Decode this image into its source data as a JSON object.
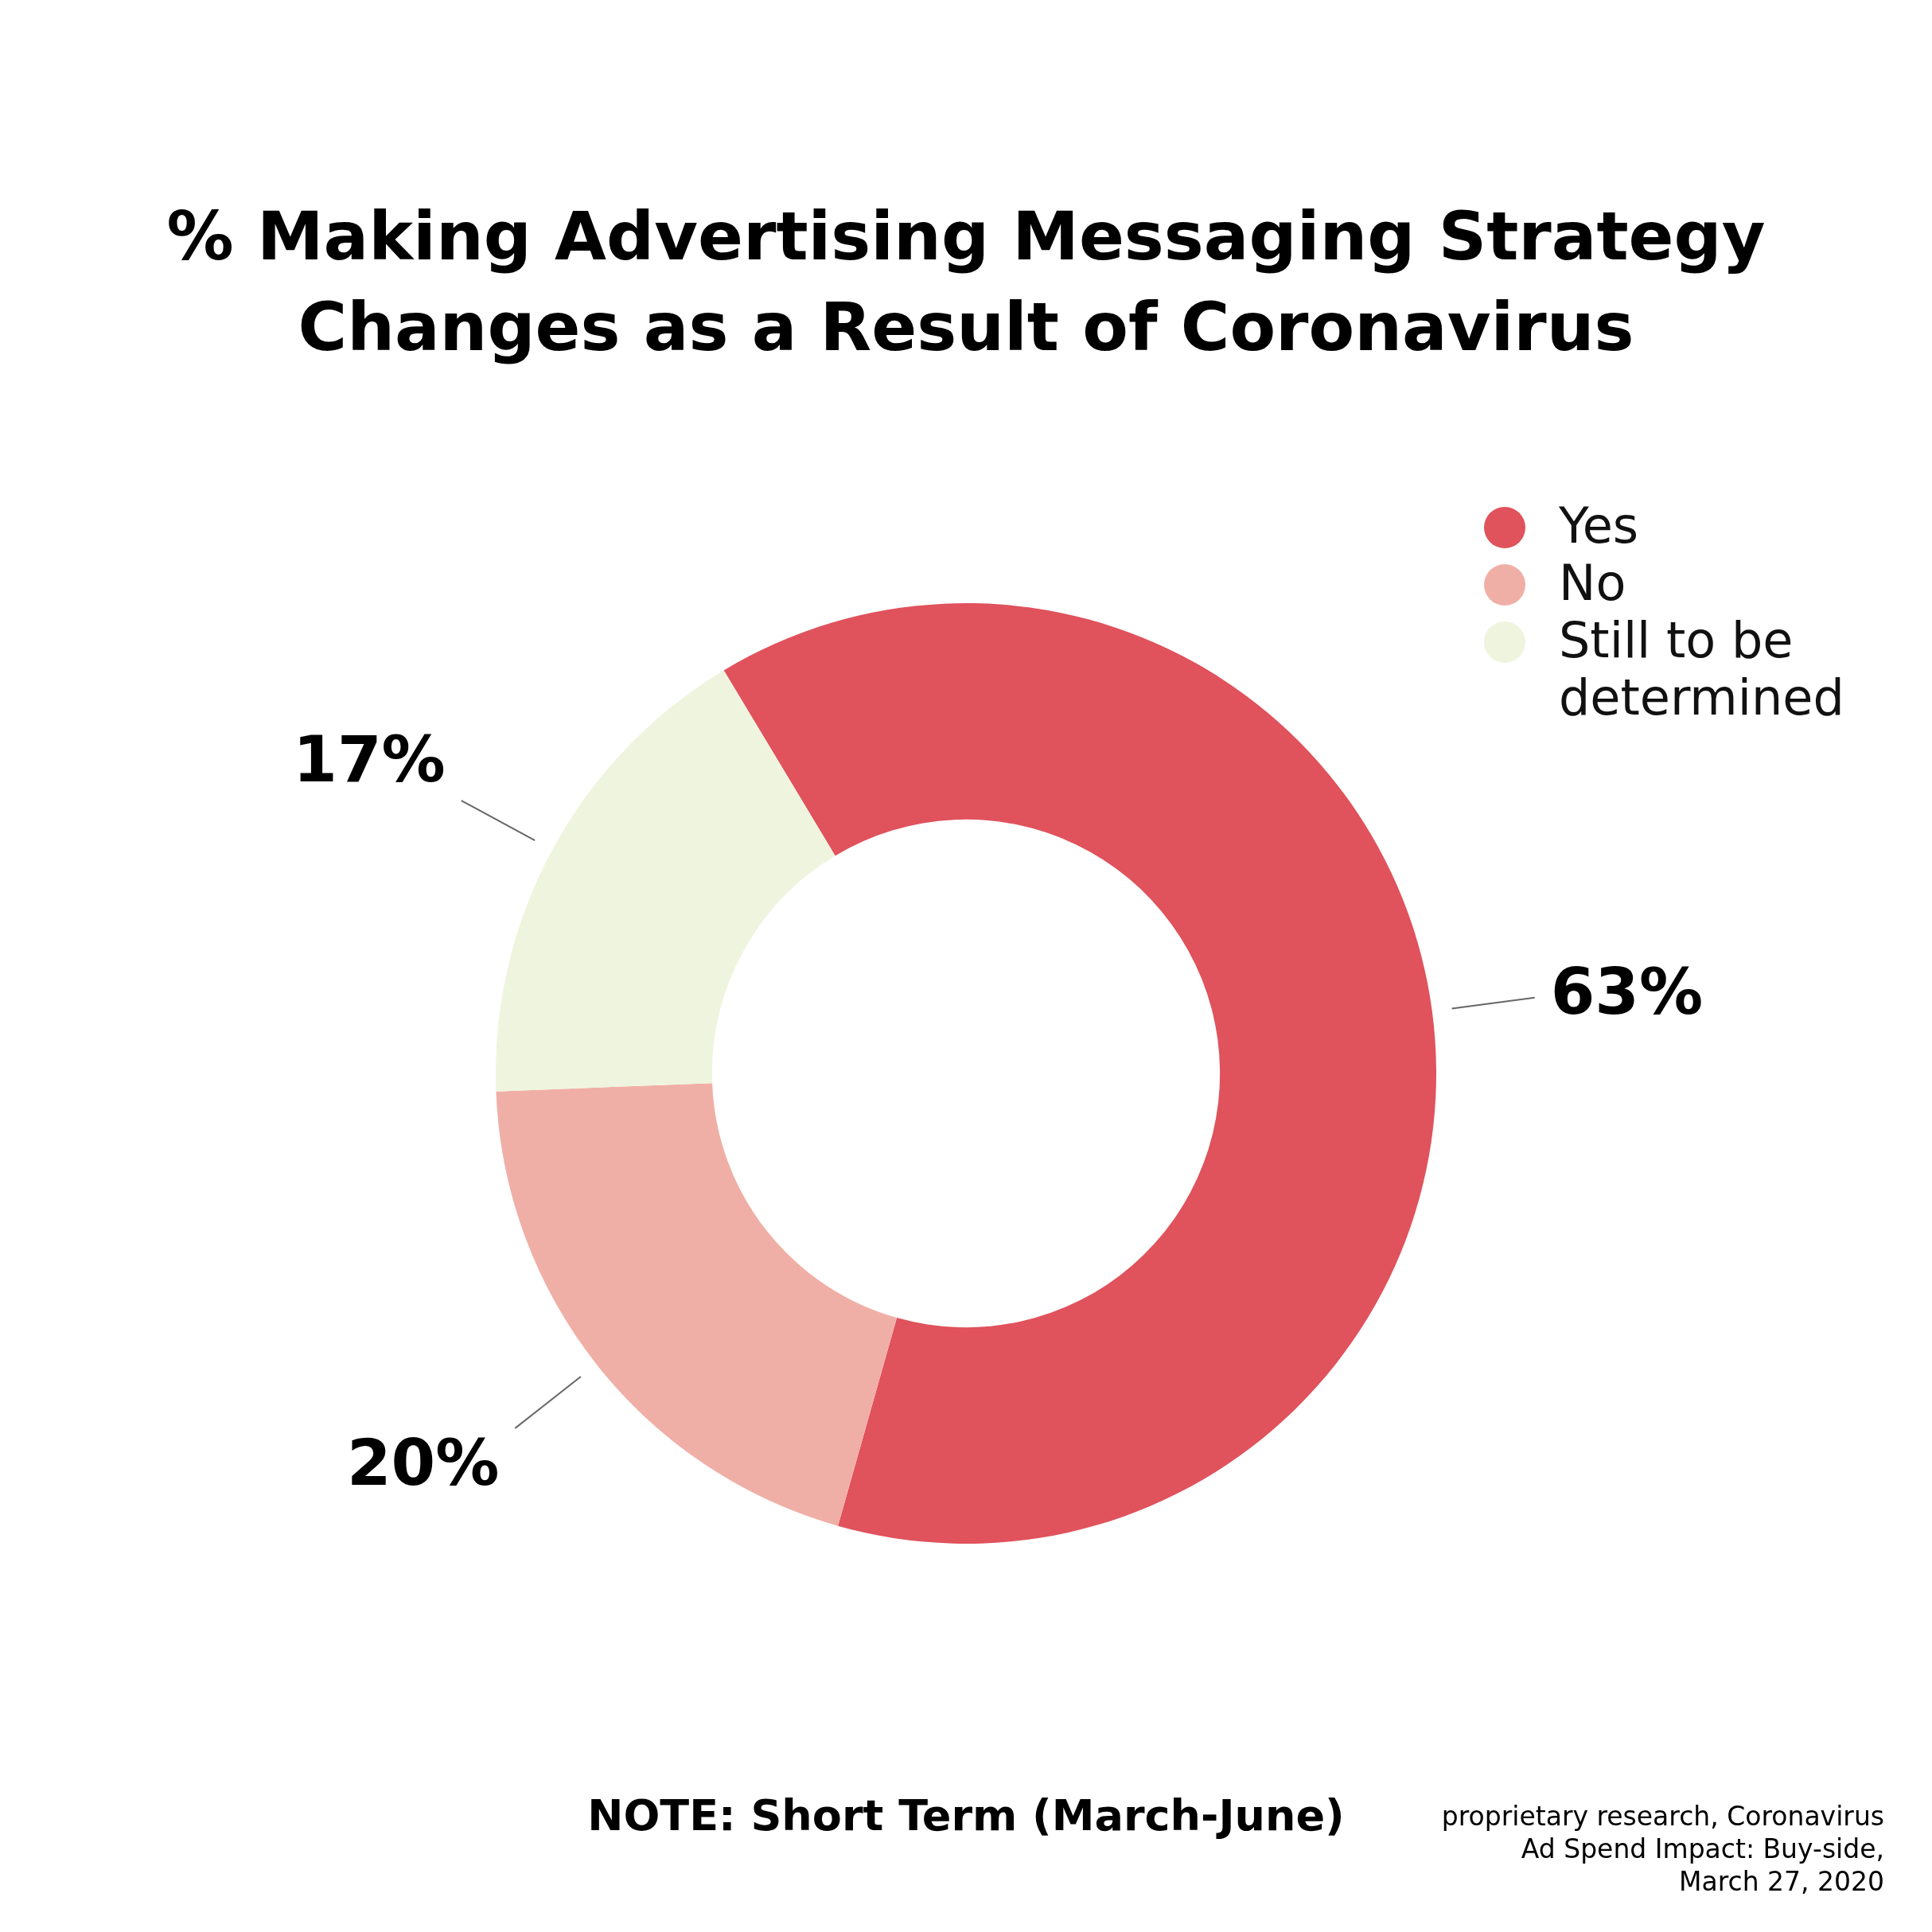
{
  "chart_data": {
    "type": "donut",
    "title": "% Making Advertising Messaging Strategy Changes as a Result of Coronavirus",
    "categories": [
      "Yes",
      "No",
      "Still to be determined"
    ],
    "values": [
      63,
      20,
      17
    ],
    "colors": [
      "#e0525c",
      "#f0afa6",
      "#eff4de"
    ],
    "value_labels": [
      "63%",
      "20%",
      "17%"
    ],
    "legend": "top right",
    "annotations": [
      "NOTE: Short Term (March-June)",
      "proprietary research, Coronavirus Ad Spend Impact: Buy-side, March 27, 2020"
    ]
  }
}
